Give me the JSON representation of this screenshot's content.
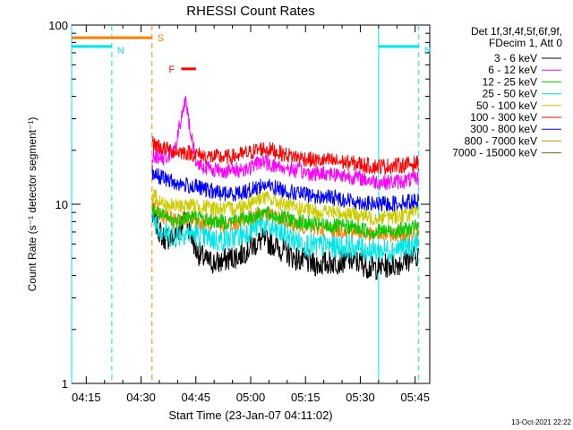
{
  "chart_data": {
    "type": "line",
    "title": "RHESSI Count Rates",
    "xlabel": "Start Time (23-Jan-07 04:11:02)",
    "ylabel": "Count Rate (s⁻¹ detector segment⁻¹)",
    "y_scale": "log",
    "ylim": [
      1,
      100
    ],
    "xlim": [
      "04:11",
      "05:49"
    ],
    "x_ticks": [
      "04:15",
      "04:30",
      "04:45",
      "05:00",
      "05:15",
      "05:30",
      "05:45"
    ],
    "y_ticks": [
      "1",
      "10",
      "100"
    ],
    "grid": false,
    "legend_placement": "right",
    "legend_header": [
      "Det 1f,3f,4f,5f,6f,9f,",
      "FDecim 1, Att 0"
    ],
    "footer_date": "13-Oct-2021 22:22",
    "data_start": "04:33",
    "data_end": "05:46",
    "x_sample_times": [
      "04:33",
      "04:36",
      "04:39",
      "04:42",
      "04:45",
      "04:48",
      "04:51",
      "04:54",
      "04:57",
      "05:00",
      "05:03",
      "05:06",
      "05:09",
      "05:12",
      "05:15",
      "05:18",
      "05:21",
      "05:24",
      "05:27",
      "05:30",
      "05:33",
      "05:36",
      "05:39",
      "05:42",
      "05:46"
    ],
    "series": [
      {
        "name": "3 - 6 keV",
        "color": "#000000",
        "values": [
          8.5,
          6.5,
          6.5,
          8.5,
          5.5,
          4.8,
          4.7,
          5.0,
          5.2,
          5.8,
          6.3,
          6.0,
          5.5,
          5.0,
          4.8,
          4.6,
          4.7,
          4.8,
          4.9,
          4.7,
          4.4,
          4.5,
          4.6,
          4.8,
          5.3
        ]
      },
      {
        "name": "6 - 12 keV",
        "color": "#ff00ff",
        "values": [
          19.0,
          18.0,
          19.5,
          38.0,
          17.0,
          16.0,
          15.5,
          15.3,
          15.6,
          16.0,
          17.5,
          16.5,
          16.0,
          15.5,
          15.0,
          14.8,
          15.0,
          14.6,
          14.3,
          14.0,
          13.5,
          13.3,
          13.3,
          13.5,
          14.0
        ]
      },
      {
        "name": "12 - 25 keV",
        "color": "#00cc00",
        "values": [
          9.5,
          8.5,
          8.0,
          8.5,
          8.5,
          8.2,
          8.0,
          8.0,
          8.3,
          8.5,
          9.0,
          8.7,
          8.4,
          8.1,
          7.8,
          7.6,
          7.6,
          7.5,
          7.5,
          7.3,
          7.0,
          7.1,
          7.1,
          7.2,
          7.5
        ]
      },
      {
        "name": "25 - 50 keV",
        "color": "#00e5e5",
        "values": [
          8.5,
          7.0,
          6.6,
          7.0,
          6.8,
          6.5,
          6.3,
          6.4,
          6.7,
          7.2,
          7.8,
          7.2,
          6.8,
          6.3,
          6.0,
          5.8,
          5.9,
          5.8,
          5.8,
          5.7,
          5.5,
          5.5,
          5.6,
          5.8,
          6.0
        ]
      },
      {
        "name": "50 - 100 keV",
        "color": "#cccc00",
        "values": [
          11.5,
          10.0,
          9.7,
          9.9,
          9.8,
          9.6,
          9.5,
          9.4,
          9.7,
          10.3,
          11.0,
          10.5,
          10.0,
          9.6,
          9.3,
          9.0,
          9.1,
          9.0,
          8.9,
          8.7,
          8.4,
          8.5,
          8.6,
          8.7,
          9.0
        ]
      },
      {
        "name": "100 - 300 keV",
        "color": "#ff0000",
        "values": [
          22.0,
          20.5,
          19.8,
          19.5,
          19.0,
          18.5,
          18.3,
          18.3,
          18.8,
          19.5,
          20.5,
          20.0,
          19.0,
          18.5,
          18.0,
          17.5,
          17.5,
          17.3,
          17.0,
          16.8,
          16.3,
          16.3,
          16.4,
          16.6,
          17.0
        ]
      },
      {
        "name": "300 - 800 keV",
        "color": "#0000ff",
        "values": [
          15.0,
          14.0,
          13.2,
          12.8,
          12.5,
          12.0,
          11.6,
          11.4,
          11.6,
          12.0,
          12.8,
          12.5,
          12.0,
          11.6,
          11.3,
          11.0,
          11.0,
          10.8,
          10.5,
          10.3,
          10.0,
          10.0,
          10.1,
          10.3,
          10.5
        ]
      },
      {
        "name": "800 - 7000 keV",
        "color": "#ff8000",
        "values": [
          10.0,
          8.6,
          8.1,
          8.3,
          8.1,
          7.9,
          7.7,
          7.7,
          8.0,
          8.4,
          9.0,
          8.6,
          8.2,
          7.8,
          7.5,
          7.3,
          7.3,
          7.2,
          7.2,
          7.0,
          6.7,
          6.8,
          6.8,
          6.9,
          7.2
        ]
      },
      {
        "name": "7000 - 15000 keV",
        "color": "#8b6508",
        "values": []
      }
    ],
    "flags": [
      {
        "label": "S",
        "color": "#ff8000",
        "y": 85,
        "start": "04:11",
        "end": "04:33"
      },
      {
        "label": "N",
        "color": "#00e5e5",
        "y": 76,
        "start": "04:11",
        "end": "04:22"
      },
      {
        "label": "N",
        "color": "#00e5e5",
        "y": 76,
        "start": "05:35",
        "end": "05:46"
      },
      {
        "label": "F",
        "color": "#ff0000",
        "y": 57,
        "start": "04:41",
        "end": "04:45"
      }
    ],
    "markers": [
      {
        "time": "04:11",
        "color": "#00e5e5",
        "style": "solid"
      },
      {
        "time": "04:22",
        "color": "#00e5e5",
        "style": "dashed"
      },
      {
        "time": "04:33",
        "color": "#ff8000",
        "style": "dashed"
      },
      {
        "time": "05:35",
        "color": "#00e5e5",
        "style": "solid"
      },
      {
        "time": "05:46",
        "color": "#00e5e5",
        "style": "dashed"
      }
    ]
  }
}
